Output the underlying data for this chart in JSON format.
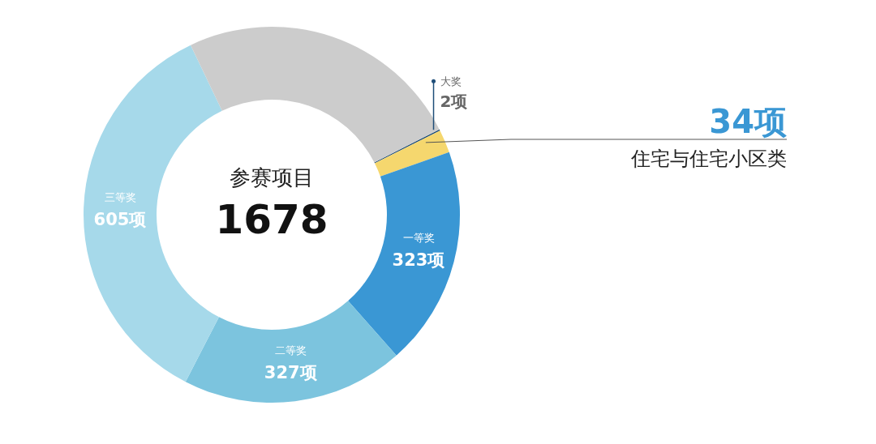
{
  "chart_data": {
    "type": "donut",
    "title": "参赛项目",
    "categories": [
      "大奖",
      "住宅与住宅小区类",
      "一等奖",
      "二等奖",
      "三等奖",
      null
    ],
    "values": [
      2,
      34,
      323,
      327,
      605,
      421
    ],
    "colors": [
      "#1f4e79",
      "#f5d76e",
      "#3a97d4",
      "#7cc4de",
      "#a6d9ea",
      "#cccccc"
    ],
    "value_labels": [
      "2项",
      "34项",
      "323项",
      "327项",
      "605项",
      null
    ],
    "annotations": [
      "1678"
    ]
  }
}
